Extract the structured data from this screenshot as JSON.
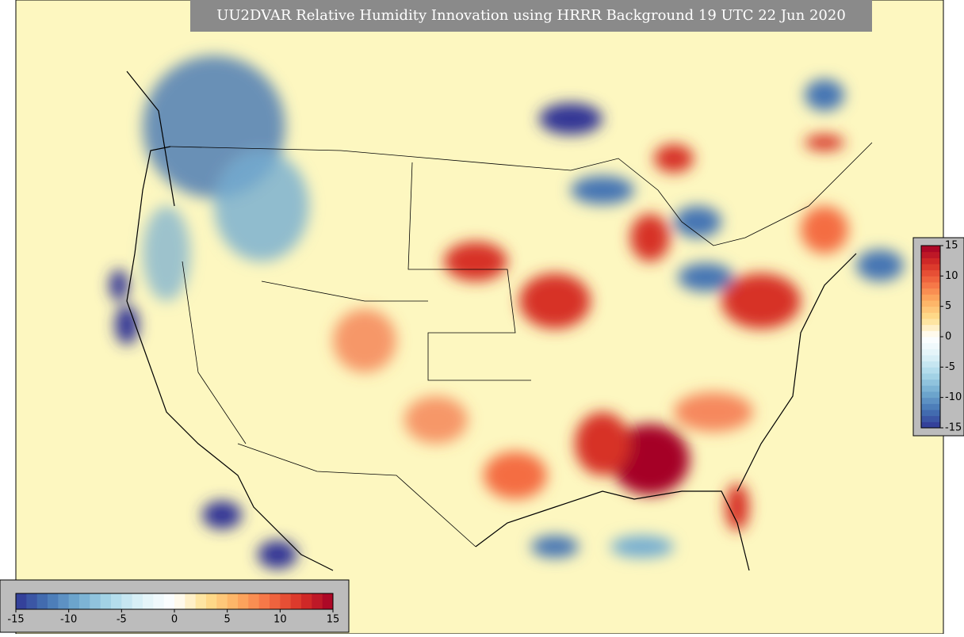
{
  "title": "UU2DVAR Relative Humidity Innovation using HRRR Background 19 UTC 22 Jun 2020",
  "colorbar": {
    "limits": [
      -15,
      15
    ],
    "ticks": [
      -15,
      -10,
      -5,
      0,
      5,
      10,
      15
    ],
    "colors": [
      "#313695",
      "#4575b4",
      "#74add1",
      "#abd9e9",
      "#e0f3f8",
      "#ffffff",
      "#fee090",
      "#fdae61",
      "#f46d43",
      "#d73027",
      "#a50026"
    ]
  }
}
